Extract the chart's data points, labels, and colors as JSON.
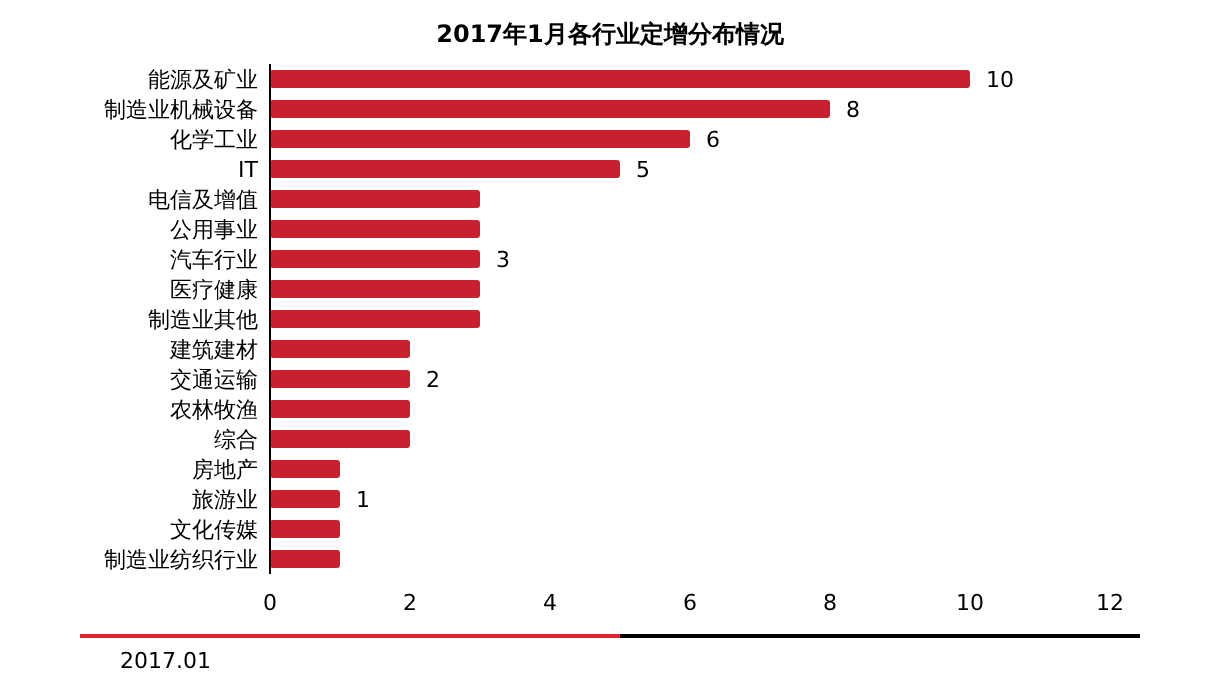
{
  "chart_data": {
    "type": "bar",
    "orientation": "horizontal",
    "title": "2017年1月各行业定增分布情况",
    "categories": [
      "能源及矿业",
      "制造业机械设备",
      "化学工业",
      "IT",
      "电信及增值",
      "公用事业",
      "汽车行业",
      "医疗健康",
      "制造业其他",
      "建筑建材",
      "交通运输",
      "农林牧渔",
      "综合",
      "房地产",
      "旅游业",
      "文化传媒",
      "制造业纺织行业"
    ],
    "values": [
      10,
      8,
      6,
      5,
      3,
      3,
      3,
      3,
      3,
      2,
      2,
      2,
      2,
      1,
      1,
      1,
      1
    ],
    "value_labels": [
      "10",
      "8",
      "6",
      "5",
      null,
      null,
      "3",
      null,
      null,
      null,
      "2",
      null,
      null,
      null,
      "1",
      null,
      null
    ],
    "color": "#c8202f",
    "xlim": [
      0,
      12
    ],
    "xticks": [
      0,
      2,
      4,
      6,
      8,
      10,
      12
    ],
    "grid": false,
    "annotations": [
      "2017.01"
    ]
  }
}
